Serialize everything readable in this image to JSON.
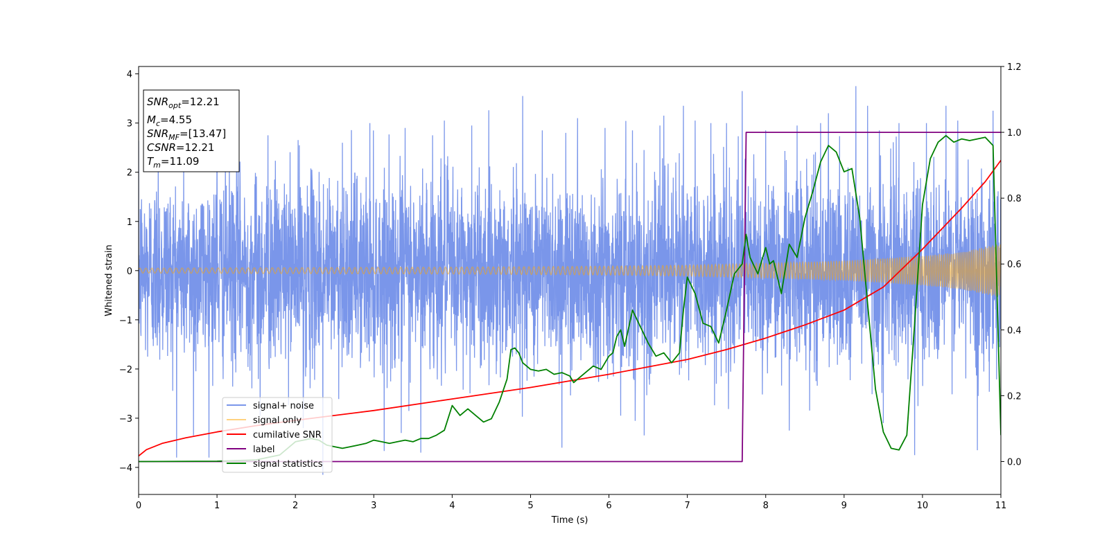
{
  "chart_data": {
    "type": "line",
    "xlabel": "Time (s)",
    "ylabel": "Whitened strain",
    "xlim": [
      0,
      11
    ],
    "ylim": [
      -4.55,
      4.15
    ],
    "y2lim": [
      -0.1,
      1.2
    ],
    "xticks": [
      "0",
      "1",
      "2",
      "3",
      "4",
      "5",
      "6",
      "7",
      "8",
      "9",
      "10",
      "11"
    ],
    "yticks": [
      "−4",
      "−3",
      "−2",
      "−1",
      "0",
      "1",
      "2",
      "3",
      "4"
    ],
    "y2ticks": [
      "0.0",
      "0.2",
      "0.4",
      "0.6",
      "0.8",
      "1.0",
      "1.2"
    ],
    "grid": false,
    "legend_position": "lower-left",
    "info_box": [
      {
        "main": "SNR",
        "sub": "opt",
        "rest": "=12.21"
      },
      {
        "main": "M",
        "sub": "c",
        "rest": "=4.55"
      },
      {
        "main": "SNR",
        "sub": "MF",
        "rest": "=[13.47]"
      },
      {
        "main": "CSNR",
        "sub": "",
        "rest": "=12.21"
      },
      {
        "main": "T",
        "sub": "m",
        "rest": "=11.09"
      }
    ],
    "series": [
      {
        "name": "signal+ noise",
        "color": "#4169e1",
        "opacity": 0.7,
        "axis": "left",
        "style": "noise",
        "amplitude_sigma": 0.95,
        "peaks_x": [
          0.25,
          0.7,
          1.0,
          1.25,
          1.55,
          1.65,
          2.05,
          2.1,
          2.35,
          2.6,
          2.95,
          3.35,
          3.4,
          3.6,
          3.75,
          3.9,
          4.25,
          4.9,
          5.15,
          5.4,
          5.45,
          5.6,
          5.95,
          6.15,
          6.3,
          6.45,
          6.65,
          6.7,
          6.95,
          7.1,
          7.3,
          7.5,
          7.7,
          8.0,
          8.3,
          8.4,
          8.7,
          8.8,
          9.15,
          9.3,
          9.45,
          9.5,
          9.7,
          9.9,
          10.05,
          10.3,
          10.45,
          10.7,
          10.9
        ],
        "peaks_y": [
          2.3,
          -3.35,
          2.8,
          3.0,
          -2.95,
          2.75,
          2.55,
          -3.2,
          -4.15,
          2.6,
          3.0,
          -3.3,
          2.9,
          -3.7,
          2.75,
          3.05,
          2.95,
          3.55,
          2.85,
          -3.6,
          2.8,
          3.1,
          2.9,
          -2.95,
          2.85,
          -3.35,
          2.95,
          3.15,
          3.35,
          3.05,
          3.0,
          3.0,
          3.65,
          2.85,
          -3.25,
          2.95,
          3.0,
          3.2,
          3.75,
          3.35,
          2.85,
          -3.1,
          3.0,
          -3.75,
          3.0,
          3.35,
          3.05,
          -3.65,
          3.25
        ]
      },
      {
        "name": "signal only",
        "color": "#ffa500",
        "opacity": 0.5,
        "axis": "left",
        "style": "chirp",
        "envelope_x": [
          0,
          2,
          4,
          6,
          7,
          8,
          9,
          10,
          10.5,
          11
        ],
        "envelope_y": [
          0.05,
          0.06,
          0.07,
          0.09,
          0.11,
          0.15,
          0.2,
          0.3,
          0.38,
          0.55
        ]
      },
      {
        "name": "cumilative SNR",
        "color": "#ff0000",
        "axis": "right",
        "x": [
          0,
          0.1,
          0.3,
          0.6,
          1,
          1.5,
          2,
          3,
          4,
          5,
          6,
          7,
          7.5,
          8,
          8.5,
          9,
          9.5,
          10,
          10.5,
          10.8,
          11
        ],
        "y": [
          0.017,
          0.036,
          0.055,
          0.072,
          0.09,
          0.109,
          0.125,
          0.155,
          0.19,
          0.225,
          0.265,
          0.31,
          0.34,
          0.375,
          0.415,
          0.46,
          0.53,
          0.645,
          0.77,
          0.85,
          0.915
        ]
      },
      {
        "name": "label",
        "color": "#800080",
        "axis": "right",
        "x": [
          0,
          7.7,
          7.75,
          11
        ],
        "y": [
          0,
          0,
          1,
          1
        ]
      },
      {
        "name": "signal statistics",
        "color": "#008000",
        "axis": "right",
        "x": [
          0,
          1,
          1.5,
          1.8,
          2.0,
          2.1,
          2.2,
          2.3,
          2.4,
          2.5,
          2.6,
          2.7,
          2.8,
          2.9,
          3.0,
          3.1,
          3.2,
          3.3,
          3.4,
          3.5,
          3.6,
          3.7,
          3.8,
          3.9,
          4.0,
          4.1,
          4.2,
          4.3,
          4.4,
          4.5,
          4.6,
          4.7,
          4.75,
          4.8,
          4.85,
          4.9,
          5.0,
          5.1,
          5.2,
          5.3,
          5.4,
          5.5,
          5.55,
          5.6,
          5.7,
          5.8,
          5.9,
          6.0,
          6.05,
          6.1,
          6.15,
          6.2,
          6.3,
          6.4,
          6.5,
          6.6,
          6.7,
          6.8,
          6.9,
          6.95,
          7.0,
          7.1,
          7.2,
          7.3,
          7.4,
          7.5,
          7.6,
          7.7,
          7.75,
          7.8,
          7.9,
          8.0,
          8.05,
          8.1,
          8.2,
          8.3,
          8.4,
          8.5,
          8.6,
          8.7,
          8.8,
          8.9,
          9.0,
          9.1,
          9.2,
          9.3,
          9.4,
          9.5,
          9.6,
          9.7,
          9.8,
          9.9,
          10.0,
          10.1,
          10.2,
          10.3,
          10.4,
          10.5,
          10.6,
          10.7,
          10.8,
          10.9,
          11.0
        ],
        "y": [
          0,
          0.001,
          0.005,
          0.02,
          0.06,
          0.065,
          0.07,
          0.065,
          0.05,
          0.045,
          0.04,
          0.045,
          0.05,
          0.055,
          0.065,
          0.06,
          0.055,
          0.06,
          0.065,
          0.06,
          0.07,
          0.07,
          0.08,
          0.095,
          0.17,
          0.14,
          0.16,
          0.14,
          0.12,
          0.13,
          0.18,
          0.25,
          0.34,
          0.345,
          0.33,
          0.3,
          0.28,
          0.275,
          0.28,
          0.265,
          0.27,
          0.26,
          0.24,
          0.25,
          0.27,
          0.29,
          0.28,
          0.32,
          0.33,
          0.38,
          0.4,
          0.35,
          0.46,
          0.41,
          0.36,
          0.32,
          0.33,
          0.3,
          0.33,
          0.46,
          0.56,
          0.51,
          0.42,
          0.41,
          0.36,
          0.46,
          0.57,
          0.6,
          0.69,
          0.62,
          0.57,
          0.65,
          0.6,
          0.61,
          0.51,
          0.66,
          0.62,
          0.74,
          0.82,
          0.91,
          0.96,
          0.94,
          0.88,
          0.89,
          0.74,
          0.48,
          0.22,
          0.09,
          0.04,
          0.035,
          0.08,
          0.42,
          0.78,
          0.92,
          0.97,
          0.99,
          0.97,
          0.98,
          0.975,
          0.98,
          0.985,
          0.96,
          0.08
        ]
      }
    ]
  }
}
